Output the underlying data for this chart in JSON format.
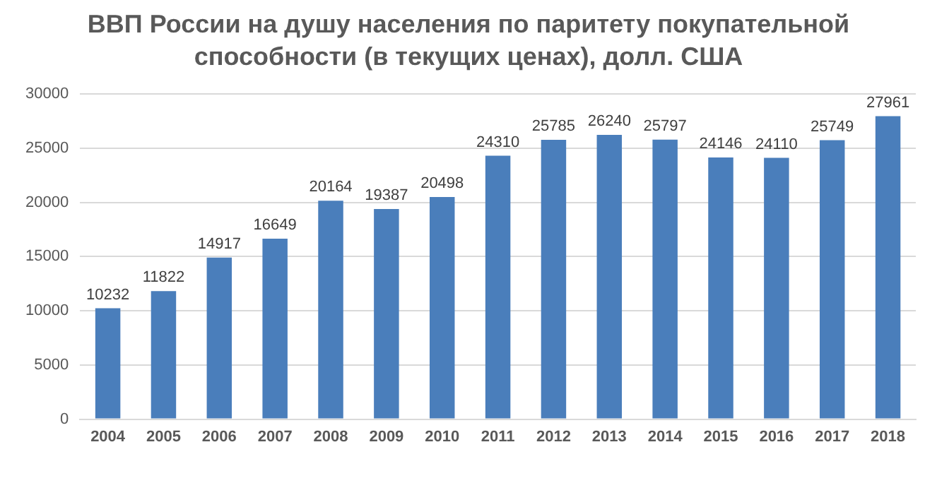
{
  "chart_data": {
    "type": "bar",
    "title": "ВВП России на душу населения по паритету покупательной способности (в текущих ценах), долл. США",
    "categories": [
      "2004",
      "2005",
      "2006",
      "2007",
      "2008",
      "2009",
      "2010",
      "2011",
      "2012",
      "2013",
      "2014",
      "2015",
      "2016",
      "2017",
      "2018"
    ],
    "values": [
      10232,
      11822,
      14917,
      16649,
      20164,
      19387,
      20498,
      24310,
      25785,
      26240,
      25797,
      24146,
      24110,
      25749,
      27961
    ],
    "color": "#4a7ebb",
    "ylim": [
      0,
      30000
    ],
    "yticks": [
      0,
      5000,
      10000,
      15000,
      20000,
      25000,
      30000
    ],
    "grid": "y",
    "data_labels": true,
    "legend": false
  }
}
